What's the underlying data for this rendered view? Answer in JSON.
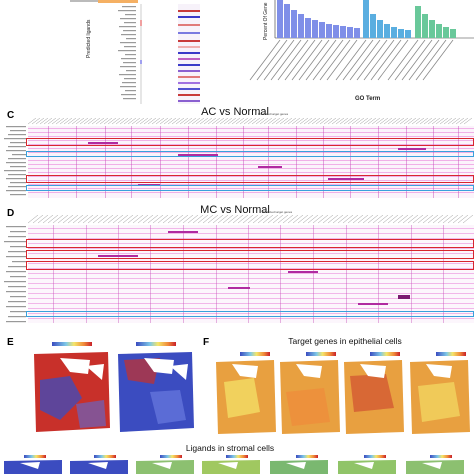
{
  "panels": {
    "c": {
      "letter": "C",
      "title": "AC vs Normal",
      "sub": "Predicted target genes"
    },
    "d": {
      "letter": "D",
      "title": "MC vs Normal",
      "sub": "Predicted target genes"
    },
    "e": {
      "letter": "E"
    },
    "f": {
      "letter": "F",
      "caption": "Target genes in epithelial cells"
    },
    "g": {
      "caption": "Ligands in stromal cells"
    }
  },
  "top": {
    "left_axis_label": "Predicted ligands",
    "bar_axis_label": "Percent Of Gene",
    "go_axis_label": "GO Term"
  },
  "colors": {
    "red_box": "#d8262e",
    "blue_box": "#3aa0dc",
    "heat_pink": "#e87ad8",
    "bar_blue": "#7f8fe8",
    "bar_cyan": "#5aaee0",
    "bar_green": "#69c89a"
  }
}
